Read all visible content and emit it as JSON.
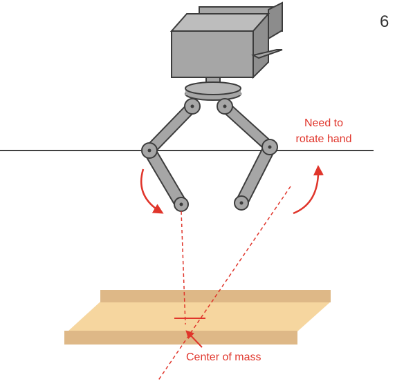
{
  "page_number": "6",
  "annotations": {
    "rotate_note_line1": "Need to",
    "rotate_note_line2": "rotate hand",
    "center_of_mass": "Center of mass"
  },
  "colors": {
    "annotation": "#e0352b",
    "gripper_fill": "#a6a6a6",
    "gripper_stroke": "#3c3c3c",
    "plate_light": "#f6d69f",
    "plate_dark": "#deb887",
    "baseline": "#000000"
  },
  "icons": {
    "rotation_arrows": "curved-arrow-icon",
    "com_pointer": "arrow-icon"
  }
}
